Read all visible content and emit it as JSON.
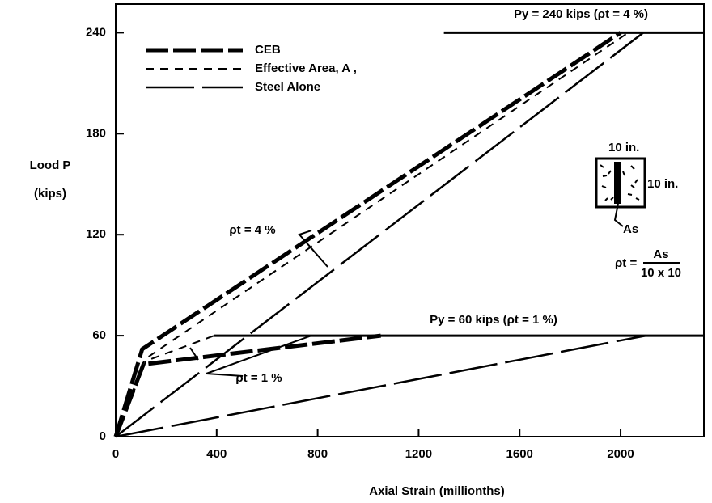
{
  "chart_data": {
    "type": "line",
    "y_label": "Lood P",
    "y_unit": "(kips)",
    "x_label": "Axial Strain (millionths)",
    "xlim": [
      0,
      2330
    ],
    "ylim": [
      0,
      257
    ],
    "xticks": [
      0,
      400,
      800,
      1200,
      1600,
      2000
    ],
    "yticks": [
      0,
      60,
      120,
      180,
      240
    ],
    "color": "#000000",
    "series": [
      {
        "name": "CEB",
        "style": "heavy-dash",
        "x": [
          0,
          105,
          2000
        ],
        "values": [
          0,
          52,
          240
        ]
      },
      {
        "name": "Effective Area, A ,",
        "style": "dash",
        "x": [
          0,
          115,
          2030
        ],
        "values": [
          0,
          46,
          240
        ]
      },
      {
        "name": "Steel Alone",
        "style": "long-dash",
        "x": [
          0,
          2090
        ],
        "values": [
          0,
          240
        ]
      },
      {
        "style": "heavy-dash",
        "x": [
          0,
          110,
          1050
        ],
        "values": [
          0,
          43,
          60
        ]
      },
      {
        "style": "dash",
        "x": [
          0,
          120,
          390
        ],
        "values": [
          0,
          45,
          60
        ]
      },
      {
        "style": "long-dash",
        "x": [
          0,
          2100
        ],
        "values": [
          0,
          60
        ]
      },
      {
        "style": "solid",
        "x": [
          1300,
          2330
        ],
        "values": [
          240,
          240
        ]
      },
      {
        "style": "solid",
        "x": [
          390,
          2330
        ],
        "values": [
          60,
          60
        ]
      }
    ],
    "annotations": [
      "Py = 240 kips (ρt = 4 %)",
      "Py = 60 kips (ρt = 1 %)",
      "ρt = 4 %",
      "ρt = 1 %",
      "10 in.",
      "10 in.",
      "As",
      "ρt =",
      "As",
      "10 x 10"
    ]
  }
}
